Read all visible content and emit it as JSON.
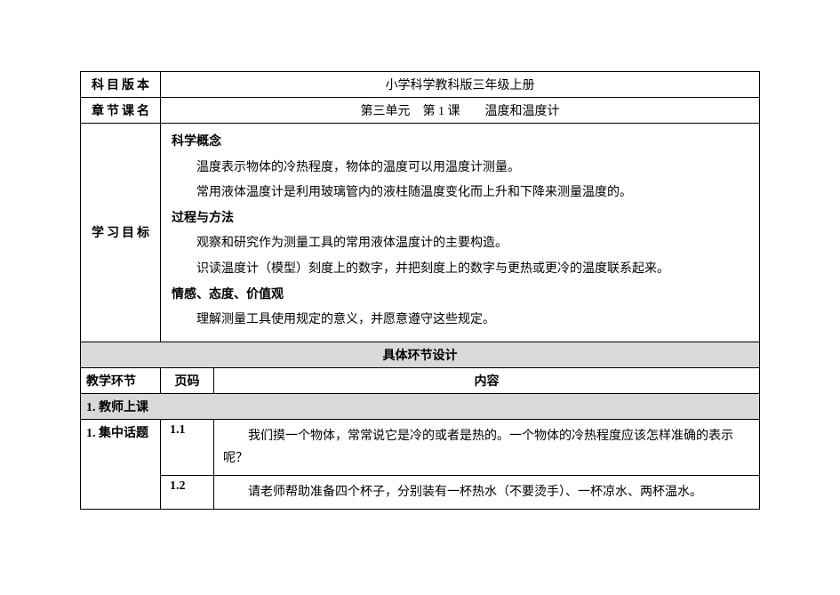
{
  "rows": {
    "subject_label": "科目版本",
    "subject_value": "小学科学教科版三年级上册",
    "chapter_label": "章节课名",
    "chapter_value": "第三单元　第 1 课　　温度和温度计",
    "goals_label": "学习目标",
    "goals": {
      "h1": "科学概念",
      "p1": "温度表示物体的冷热程度，物体的温度可以用温度计测量。",
      "p2": "常用液体温度计是利用玻璃管内的液柱随温度变化而上升和下降来测量温度的。",
      "h2": "过程与方法",
      "p3": "观察和研究作为测量工具的常用液体温度计的主要构造。",
      "p4": "识读温度计（模型）刻度上的数字，并把刻度上的数字与更热或更冷的温度联系起来。",
      "h3": "情感、态度、价值观",
      "p5": "理解测量工具使用规定的意义，并愿意遵守这些规定。"
    },
    "design_header": "具体环节设计",
    "env_label": "教学环节",
    "page_label": "页码",
    "content_label": "内容",
    "teacher_section": "1. 教师上课",
    "topic_label": "1. 集中话题",
    "row1_page": "1.1",
    "row1_content": "我们摸一个物体，常常说它是冷的或者是热的。一个物体的冷热程度应该怎样准确的表示呢？",
    "row2_page": "1.2",
    "row2_content": "请老师帮助准备四个杯子，分别装有一杯热水（不要烫手）、一杯凉水、两杯温水。"
  },
  "colors": {
    "gray": "#d9d9d9",
    "border": "#000000",
    "bg": "#ffffff",
    "text": "#000000"
  },
  "typography": {
    "font_family": "SimSun",
    "font_size_pt": 10.5,
    "line_height": 1.9
  }
}
